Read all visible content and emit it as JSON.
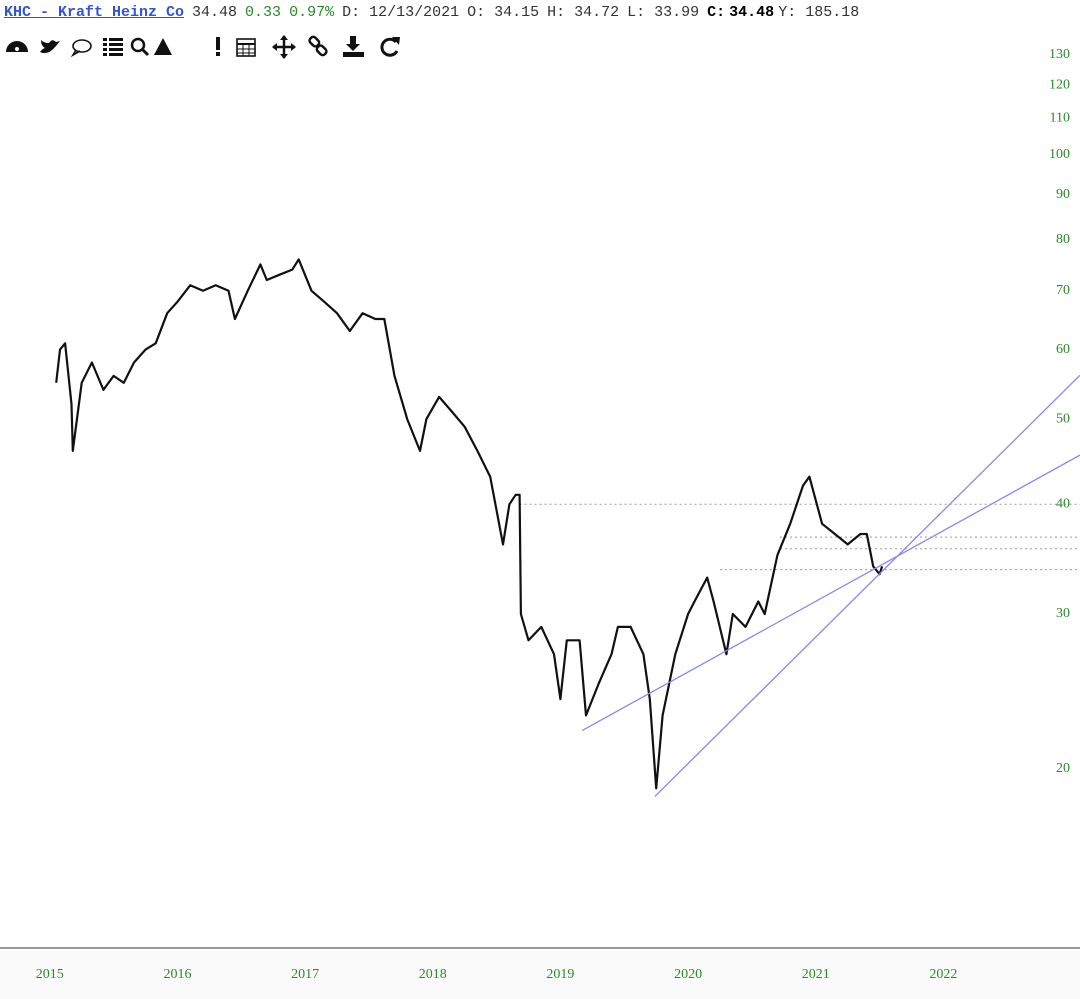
{
  "header": {
    "symbol": "KHC - Kraft Heinz Co",
    "last": "34.48",
    "change": "0.33",
    "change_pct": "0.97%",
    "date": "D: 12/13/2021",
    "open": "O: 34.15",
    "high": "H: 34.72",
    "low": "L: 33.99",
    "close_label": "C:",
    "close": "34.48",
    "y": "Y: 185.18"
  },
  "chart_data": {
    "type": "line",
    "color": "#111111",
    "log_scale": true,
    "x": [
      2015.05,
      2015.08,
      2015.12,
      2015.17,
      2015.18,
      2015.25,
      2015.33,
      2015.42,
      2015.5,
      2015.58,
      2015.66,
      2015.75,
      2015.83,
      2015.92,
      2016.0,
      2016.1,
      2016.2,
      2016.3,
      2016.4,
      2016.45,
      2016.55,
      2016.65,
      2016.7,
      2016.8,
      2016.9,
      2016.95,
      2017.05,
      2017.15,
      2017.25,
      2017.35,
      2017.45,
      2017.55,
      2017.62,
      2017.7,
      2017.8,
      2017.9,
      2017.95,
      2018.05,
      2018.15,
      2018.25,
      2018.35,
      2018.45,
      2018.55,
      2018.6,
      2018.65,
      2018.68,
      2018.69,
      2018.75,
      2018.85,
      2018.95,
      2019.0,
      2019.05,
      2019.15,
      2019.2,
      2019.3,
      2019.4,
      2019.45,
      2019.55,
      2019.65,
      2019.7,
      2019.75,
      2019.8,
      2019.9,
      2020.0,
      2020.05,
      2020.1,
      2020.15,
      2020.2,
      2020.3,
      2020.35,
      2020.45,
      2020.55,
      2020.6,
      2020.7,
      2020.8,
      2020.9,
      2020.95,
      2021.05,
      2021.15,
      2021.25,
      2021.35,
      2021.4,
      2021.45,
      2021.5,
      2021.52
    ],
    "values": [
      55,
      60,
      61,
      52,
      46,
      55,
      58,
      54,
      56,
      55,
      58,
      60,
      61,
      66,
      68,
      71,
      70,
      71,
      70,
      65,
      70,
      75,
      72,
      73,
      74,
      76,
      70,
      68,
      66,
      63,
      66,
      65,
      65,
      56,
      50,
      46,
      50,
      53,
      51,
      49,
      46,
      43,
      36,
      40,
      41,
      41,
      30,
      28,
      29,
      27,
      24,
      28,
      28,
      23,
      25,
      27,
      29,
      29,
      27,
      24,
      19,
      23,
      27,
      30,
      31,
      32,
      33,
      31,
      27,
      30,
      29,
      31,
      30,
      35,
      38,
      42,
      43,
      38,
      37,
      36,
      37,
      37,
      34,
      33.3,
      34
    ],
    "trendlines": [
      {
        "x": [
          2019.17,
          2023.07
        ],
        "values": [
          22.1,
          45.5
        ],
        "color": "#8888ee"
      },
      {
        "x": [
          2019.74,
          2023.07
        ],
        "values": [
          18.6,
          56.1
        ],
        "color": "#8888ee"
      }
    ],
    "levels": [
      {
        "value": 40,
        "from": 2018.68
      },
      {
        "value": 36.7,
        "from": 2020.72
      },
      {
        "value": 35.6,
        "from": 2020.72
      },
      {
        "value": 33.7,
        "from": 2020.25
      }
    ],
    "xlim": [
      2014.61,
      2023.07
    ],
    "xticks": [
      2015,
      2016,
      2017,
      2018,
      2019,
      2020,
      2021,
      2022
    ],
    "ylim": [
      12.5,
      150
    ],
    "yticks": [
      20,
      30,
      40,
      50,
      60,
      70,
      80,
      90,
      100,
      110,
      120,
      130
    ]
  }
}
